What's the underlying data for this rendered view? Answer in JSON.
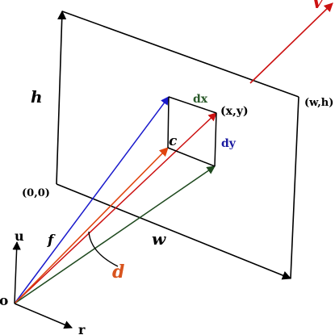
{
  "labels": {
    "origin": "o",
    "up": "u",
    "right": "r",
    "forward": "f",
    "direction": "d",
    "view": "V",
    "height": "h",
    "width": "w",
    "corner_origin": "(0,0)",
    "corner_wh": "(w,h)",
    "center": "c",
    "point": "(x,y)",
    "dx": "dx",
    "dy": "dy"
  },
  "colors": {
    "black": "#000000",
    "red": "#cc1111",
    "blue": "#1a1acc",
    "green": "#1f4a1f",
    "orange": "#e0440e",
    "orange_label": "#d8541e",
    "dx_label": "#2a5a2a",
    "dy_label": "#1a1aa0"
  }
}
